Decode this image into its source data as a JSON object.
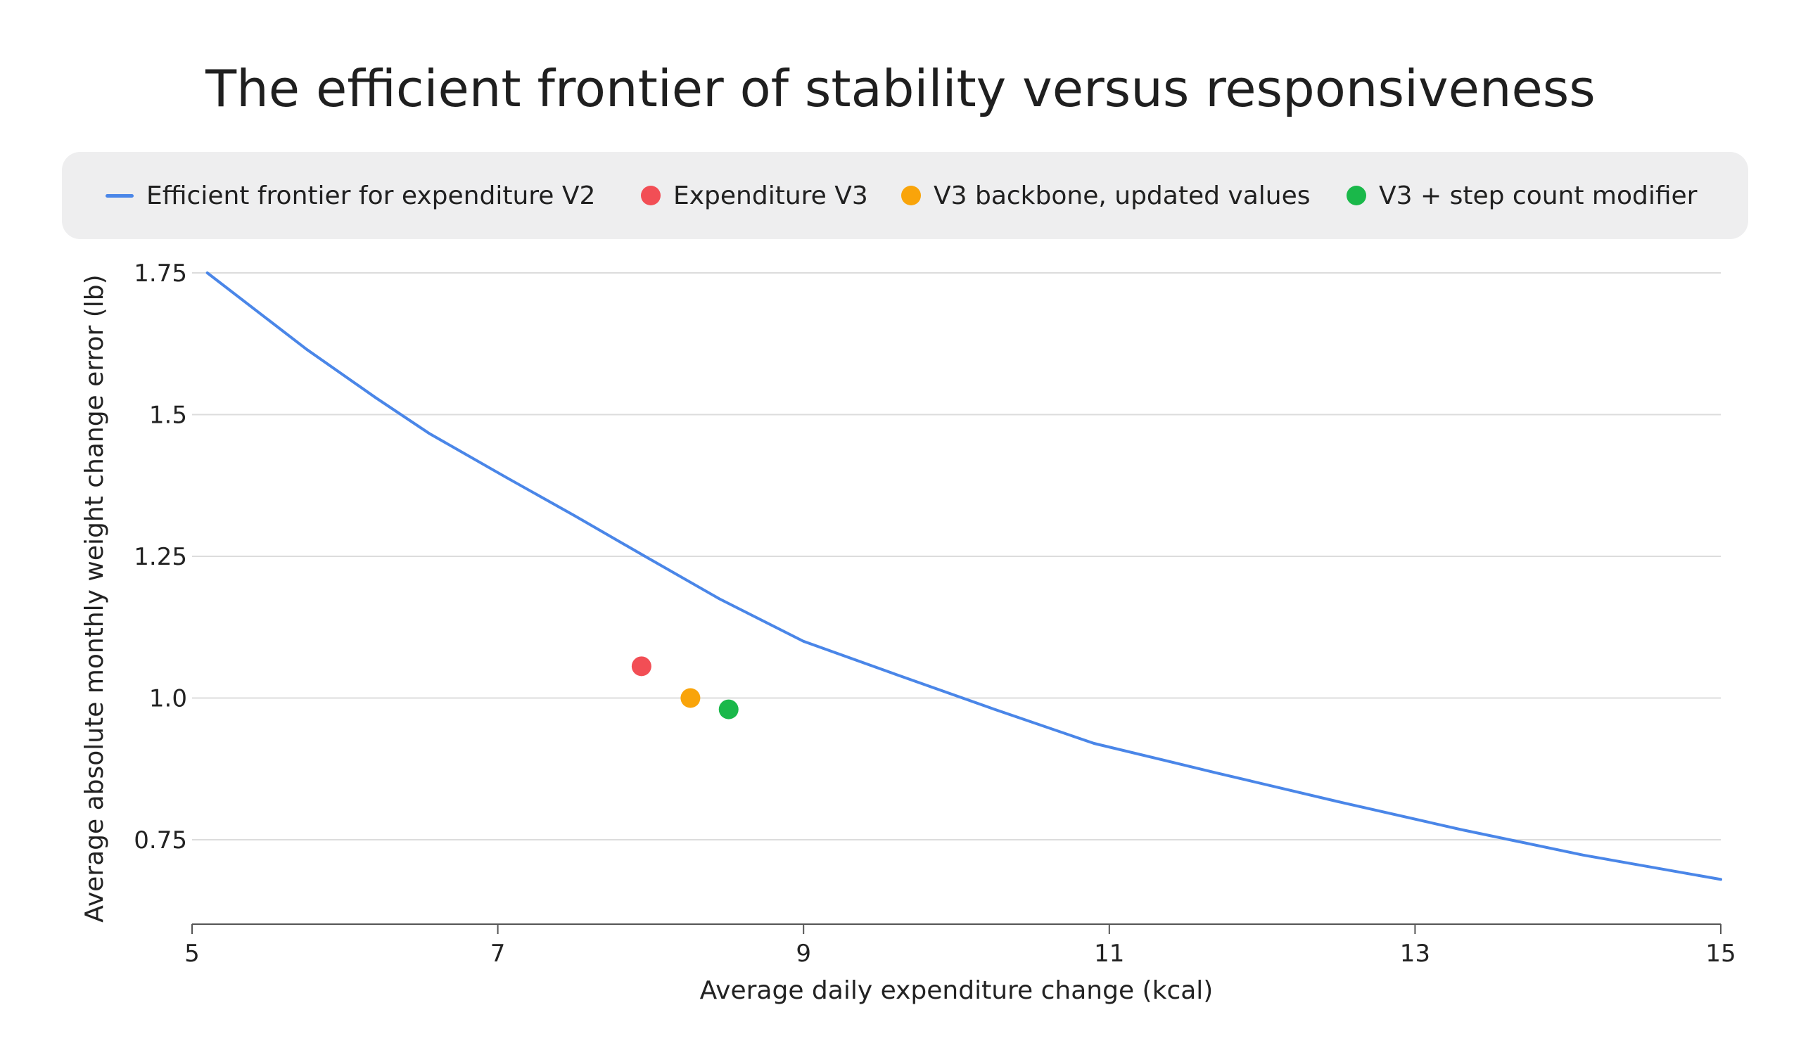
{
  "chart_data": {
    "type": "line",
    "title": "The efficient frontier of stability versus responsiveness",
    "xlabel": "Average daily expenditure change (kcal)",
    "ylabel": "Average absolute monthly weight change error (lb)",
    "xlim": [
      5,
      15
    ],
    "ylim": [
      0.6,
      1.75
    ],
    "x_ticks": [
      5,
      7,
      9,
      11,
      13,
      15
    ],
    "x_tick_labels": [
      "5",
      "7",
      "9",
      "11",
      "13",
      "15"
    ],
    "y_ticks": [
      0.75,
      1.0,
      1.25,
      1.5,
      1.75
    ],
    "y_tick_labels": [
      "0.75",
      "1.0",
      "1.25",
      "1.5",
      "1.75"
    ],
    "grid": "horizontal",
    "legend_position": "top",
    "series": [
      {
        "name": "Efficient frontier for expenditure V2",
        "kind": "line",
        "color": "#4a86e8",
        "x": [
          5.1,
          5.75,
          6.2,
          6.55,
          7.05,
          7.5,
          7.95,
          8.45,
          9.0,
          9.6,
          10.25,
          10.9,
          11.7,
          12.5,
          13.3,
          14.1,
          15.0
        ],
        "y": [
          1.75,
          1.615,
          1.53,
          1.467,
          1.39,
          1.322,
          1.252,
          1.175,
          1.1,
          1.042,
          0.98,
          0.92,
          0.868,
          0.817,
          0.768,
          0.723,
          0.68
        ]
      },
      {
        "name": "Expenditure V3",
        "kind": "scatter",
        "color": "#f24e55",
        "x": [
          7.94
        ],
        "y": [
          1.056
        ]
      },
      {
        "name": "V3 backbone, updated values",
        "kind": "scatter",
        "color": "#f9a40a",
        "x": [
          8.26
        ],
        "y": [
          1.0
        ]
      },
      {
        "name": "V3 + step count modifier",
        "kind": "scatter",
        "color": "#1ab84a",
        "x": [
          8.51
        ],
        "y": [
          0.98
        ]
      }
    ]
  },
  "colors": {
    "grid": "#dcdcdc",
    "axis": "#555555",
    "legend_bg": "#eeeeef"
  }
}
